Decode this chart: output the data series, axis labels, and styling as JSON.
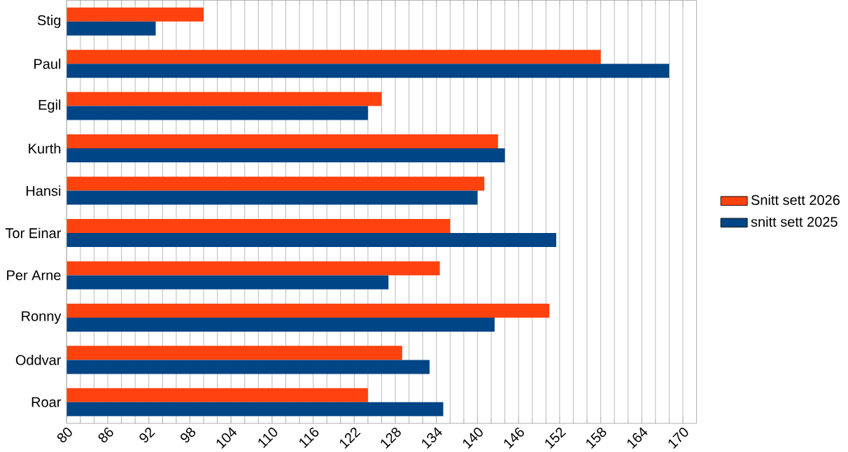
{
  "chart_data": {
    "type": "bar",
    "orientation": "horizontal",
    "categories": [
      "Stig",
      "Paul",
      "Egil",
      "Kurth",
      "Hansi",
      "Tor Einar",
      "Per Arne",
      "Ronny",
      "Oddvar",
      "Roar"
    ],
    "series": [
      {
        "name": "Snitt sett 2026",
        "color": "#ff420e",
        "values": [
          100,
          158,
          126,
          143,
          141,
          136,
          134.5,
          150.5,
          129,
          124
        ]
      },
      {
        "name": "snitt sett 2025",
        "color": "#004586",
        "values": [
          93,
          168,
          124,
          144,
          140,
          151.5,
          127,
          142.5,
          133,
          135
        ]
      }
    ],
    "xlim": [
      80,
      172
    ],
    "xticks": [
      80,
      86,
      92,
      98,
      104,
      110,
      116,
      122,
      128,
      134,
      140,
      146,
      152,
      158,
      164,
      170
    ],
    "grid": "x",
    "legend": "right"
  }
}
